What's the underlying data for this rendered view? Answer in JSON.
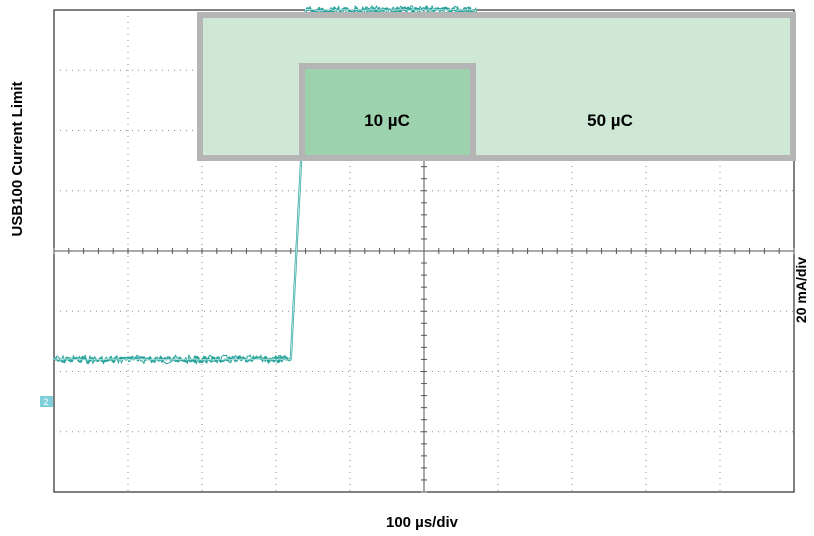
{
  "chart_data": {
    "type": "line",
    "title": "",
    "ylabel": "USB100 Current Limit",
    "xlabel": "100 µs/div",
    "yscale_label": "20 mA/div",
    "grid": true,
    "x_divisions": 10,
    "y_divisions": 8,
    "xlim": [
      0,
      1000
    ],
    "xlim_unit": "µs",
    "ylim_div": [
      -4,
      4
    ],
    "series": [
      {
        "points_div": [
          [
            0,
            -1.8
          ],
          [
            320,
            -1.8
          ],
          [
            336,
            2.0
          ],
          [
            340,
            4.0
          ],
          [
            570,
            4.0
          ],
          [
            570,
            1.65
          ],
          [
            1000,
            1.65
          ]
        ]
      }
    ],
    "annotations": [
      {
        "label": "10 µC",
        "x_start_us": 340,
        "x_end_us": 570,
        "fill": "#9dd2ae"
      },
      {
        "label": "50 µC",
        "x_start_us": 200,
        "x_end_us": 1000,
        "fill": "#cfe8d5"
      }
    ],
    "channel_marker": "2"
  },
  "colors": {
    "trace": "#2aa39b",
    "trace_highlight": "#b3e3df",
    "box_outline": "#b5b5b5",
    "grid": "#8c8c8c"
  }
}
